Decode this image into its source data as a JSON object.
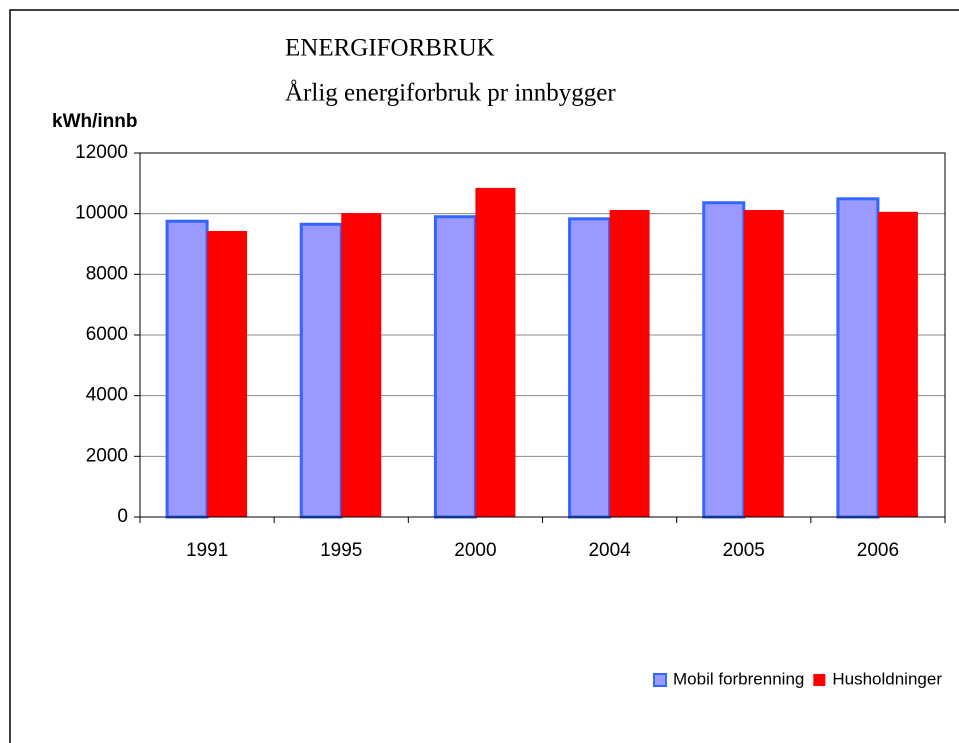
{
  "chart_data": {
    "type": "bar",
    "title": "ENERGIFORBRUK",
    "subtitle": "Årlig energiforbruk pr innbygger",
    "y_label": "kWh/innb",
    "categories": [
      "1991",
      "1995",
      "2000",
      "2004",
      "2005",
      "2006"
    ],
    "series": [
      {
        "name": "Mobil forbrenning",
        "color": "#9999ff",
        "values": [
          9750,
          9650,
          9900,
          9830,
          10360,
          10490
        ]
      },
      {
        "name": "Husholdninger",
        "color": "#ff0000",
        "values": [
          9430,
          10020,
          10850,
          10120,
          10120,
          10060
        ]
      }
    ],
    "ylim": [
      0,
      12000
    ],
    "yticks": [
      0,
      2000,
      4000,
      6000,
      8000,
      10000,
      12000
    ],
    "grid": true,
    "legend": "bottom-right"
  }
}
